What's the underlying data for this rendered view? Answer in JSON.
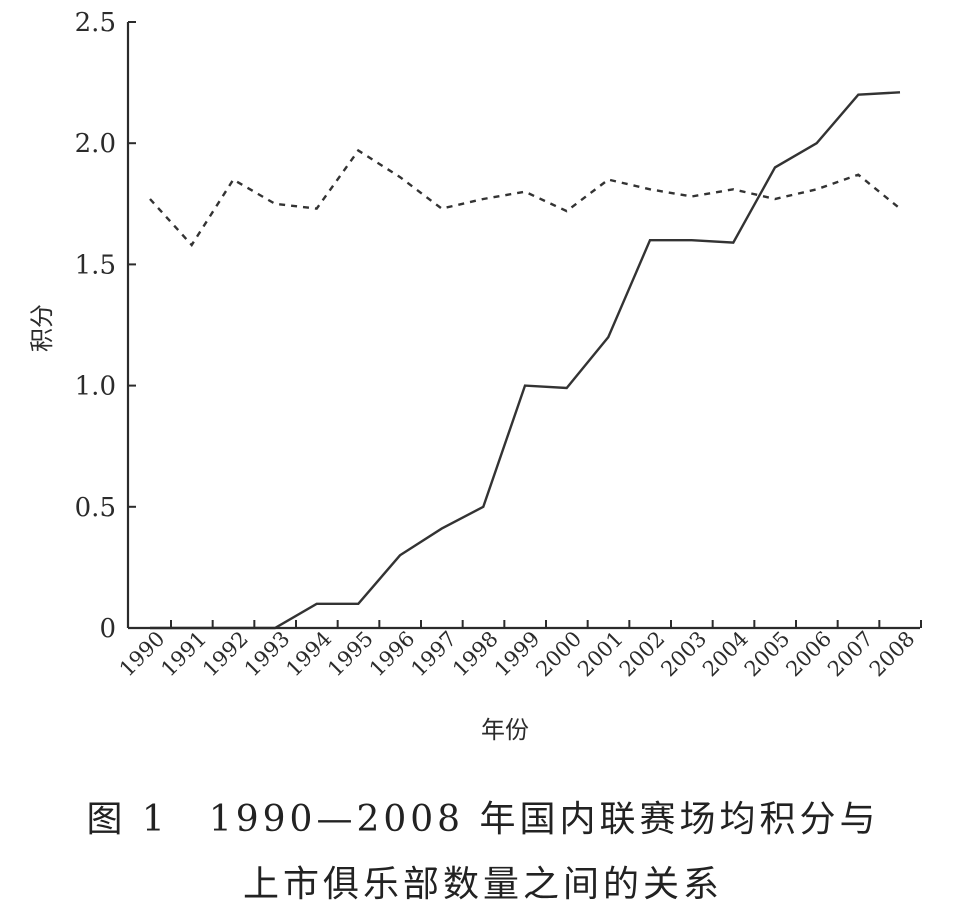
{
  "chart_data": {
    "type": "line",
    "xlabel": "年份",
    "ylabel": "积分",
    "x": [
      "1990",
      "1991",
      "1992",
      "1993",
      "1994",
      "1995",
      "1996",
      "1997",
      "1998",
      "1999",
      "2000",
      "2001",
      "2002",
      "2003",
      "2004",
      "2005",
      "2006",
      "2007",
      "2008"
    ],
    "ylim": [
      0,
      2.5
    ],
    "yticks": [
      "0",
      "0.5",
      "1.0",
      "1.5",
      "2.0",
      "2.5"
    ],
    "ytick_values": [
      0,
      0.5,
      1.0,
      1.5,
      2.0,
      2.5
    ],
    "series": [
      {
        "style": "solid",
        "values": [
          0,
          0,
          0,
          0,
          0.1,
          0.1,
          0.3,
          0.41,
          0.5,
          1.0,
          0.99,
          1.2,
          1.6,
          1.6,
          1.59,
          1.9,
          2.0,
          2.2,
          2.21
        ]
      },
      {
        "style": "dotted",
        "values": [
          1.77,
          1.58,
          1.85,
          1.75,
          1.73,
          1.97,
          1.86,
          1.73,
          1.77,
          1.8,
          1.72,
          1.85,
          1.81,
          1.78,
          1.81,
          1.77,
          1.81,
          1.87,
          1.73
        ]
      }
    ],
    "grid": false,
    "legend": "none"
  },
  "caption": {
    "line1": "图 1　1990—2008 年国内联赛场均积分与",
    "line2": "上市俱乐部数量之间的关系"
  }
}
